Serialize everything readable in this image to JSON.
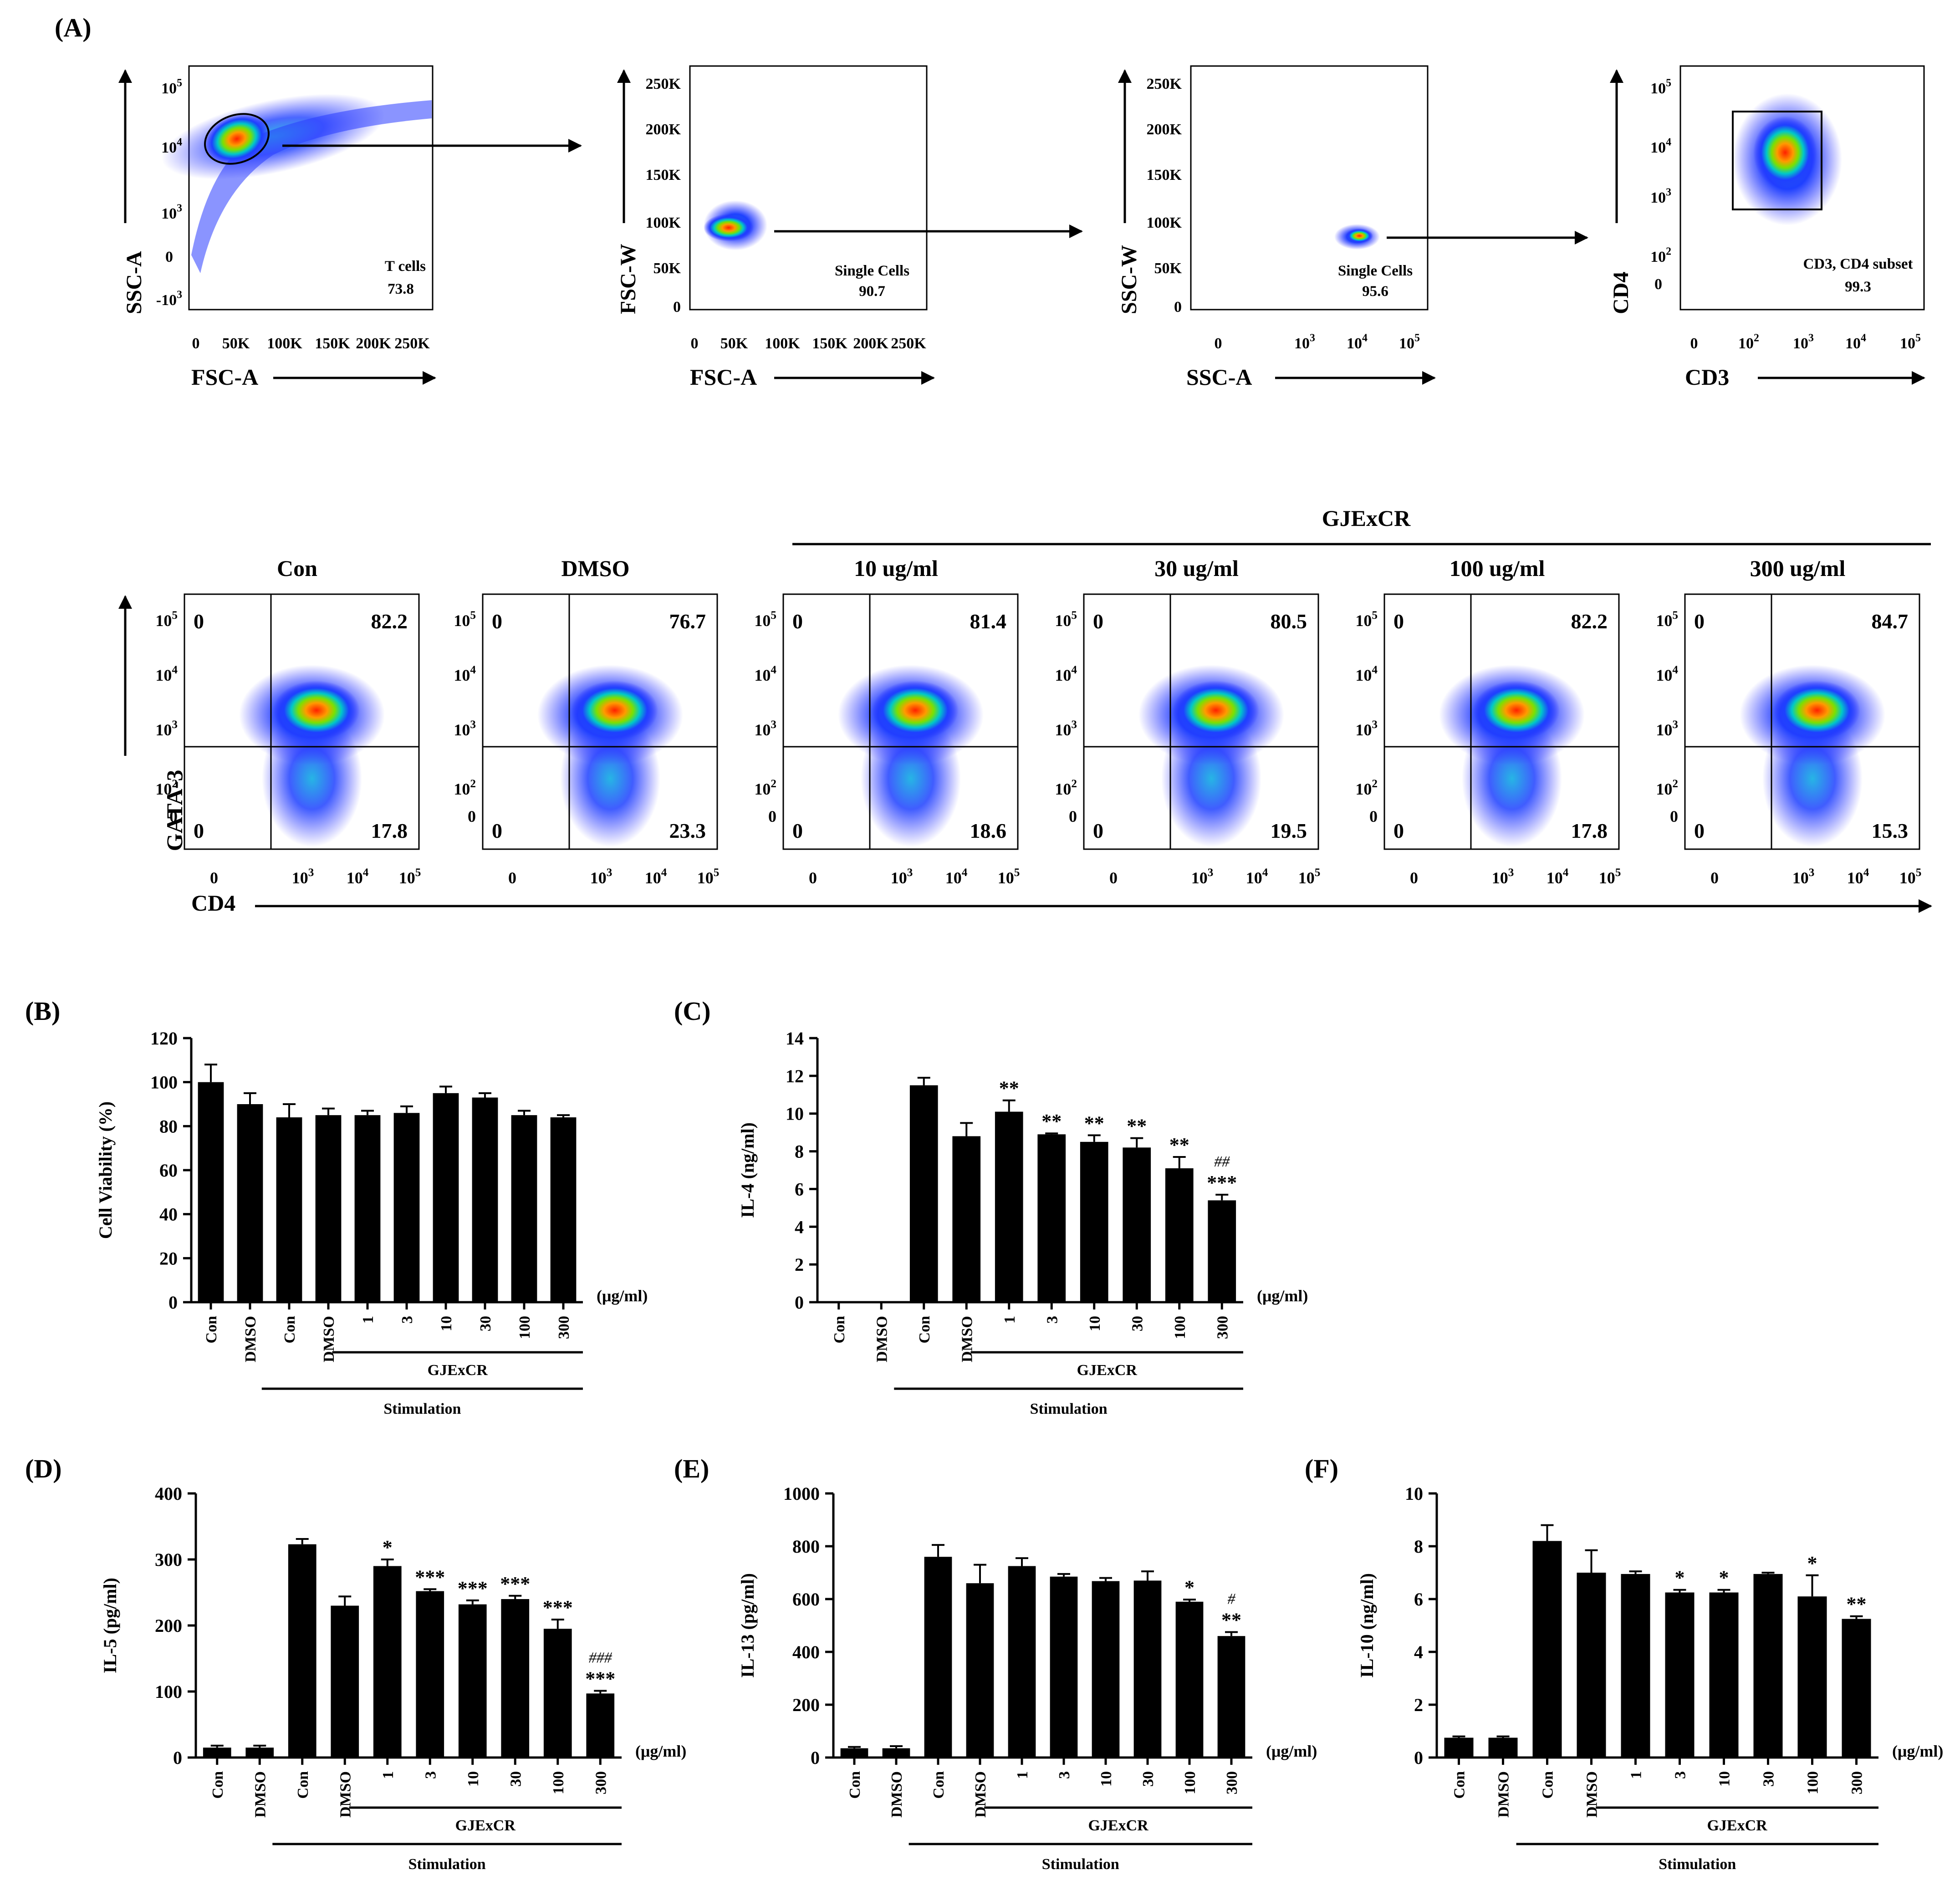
{
  "panel_labels": {
    "A": "(A)",
    "B": "(B)",
    "C": "(C)",
    "D": "(D)",
    "E": "(E)",
    "F": "(F)"
  },
  "gating": [
    {
      "xlabel": "FSC-A",
      "ylabel": "SSC-A",
      "xticks": [
        "0",
        "50K",
        "100K",
        "150K",
        "200K",
        "250K"
      ],
      "yticks": [
        "10^5",
        "10^4",
        "10^3",
        "0",
        "-10^3"
      ],
      "gate_name": "T cells",
      "gate_value": "73.8"
    },
    {
      "xlabel": "FSC-A",
      "ylabel": "FSC-W",
      "xticks": [
        "0",
        "50K",
        "100K",
        "150K",
        "200K",
        "250K"
      ],
      "yticks": [
        "250K",
        "200K",
        "150K",
        "100K",
        "50K",
        "0"
      ],
      "gate_name": "Single Cells",
      "gate_value": "90.7"
    },
    {
      "xlabel": "SSC-A",
      "ylabel": "SSC-W",
      "xticks": [
        "0",
        "10^3",
        "10^4",
        "10^5"
      ],
      "yticks": [
        "250K",
        "200K",
        "150K",
        "100K",
        "50K",
        "0"
      ],
      "gate_name": "Single Cells",
      "gate_value": "95.6"
    },
    {
      "xlabel": "CD3",
      "ylabel": "CD4",
      "xticks": [
        "0",
        "10^2",
        "10^3",
        "10^4",
        "10^5"
      ],
      "yticks": [
        "10^5",
        "10^4",
        "10^3",
        "10^2",
        "0"
      ],
      "gate_name": "CD3, CD4 subset",
      "gate_value": "99.3"
    }
  ],
  "quadrants": {
    "group_label": "GJExCR",
    "ylabel": "GATA-3",
    "xlabel": "CD4",
    "xticks": [
      "0",
      "10^3",
      "10^4",
      "10^5"
    ],
    "yticks": [
      "10^5",
      "10^4",
      "10^3",
      "10^2",
      "0"
    ],
    "plots": [
      {
        "title": "Con",
        "ul": "0",
        "ur": "82.2",
        "ll": "0",
        "lr": "17.8"
      },
      {
        "title": "DMSO",
        "ul": "0",
        "ur": "76.7",
        "ll": "0",
        "lr": "23.3"
      },
      {
        "title": "10 ug/ml",
        "ul": "0",
        "ur": "81.4",
        "ll": "0",
        "lr": "18.6"
      },
      {
        "title": "30 ug/ml",
        "ul": "0",
        "ur": "80.5",
        "ll": "0",
        "lr": "19.5"
      },
      {
        "title": "100 ug/ml",
        "ul": "0",
        "ur": "82.2",
        "ll": "0",
        "lr": "17.8"
      },
      {
        "title": "300 ug/ml",
        "ul": "0",
        "ur": "84.7",
        "ll": "0",
        "lr": "15.3"
      }
    ]
  },
  "chart_data": [
    {
      "panel": "B",
      "type": "bar",
      "ylabel": "Cell Viability (%)",
      "ylim": [
        0,
        120
      ],
      "yticks": [
        0,
        20,
        40,
        60,
        80,
        100,
        120
      ],
      "categories": [
        "Con",
        "DMSO",
        "Con",
        "DMSO",
        "1",
        "3",
        "10",
        "30",
        "100",
        "300"
      ],
      "values": [
        100,
        90,
        84,
        85,
        85,
        86,
        95,
        93,
        85,
        84
      ],
      "errors": [
        8,
        5,
        6,
        3,
        2,
        3,
        3,
        2,
        2,
        1
      ],
      "annotations": [
        "",
        "",
        "",
        "",
        "",
        "",
        "",
        "",
        "",
        ""
      ],
      "unit": "(μg/ml)",
      "group_label": "GJExCR",
      "stim_label": "Stimulation"
    },
    {
      "panel": "C",
      "type": "bar",
      "ylabel": "IL-4 (ng/ml)",
      "ylim": [
        0,
        14
      ],
      "yticks": [
        0,
        2,
        4,
        6,
        8,
        10,
        12,
        14
      ],
      "categories": [
        "Con",
        "DMSO",
        "Con",
        "DMSO",
        "1",
        "3",
        "10",
        "30",
        "100",
        "300"
      ],
      "values": [
        0,
        0,
        11.5,
        8.8,
        10.1,
        8.9,
        8.5,
        8.2,
        7.1,
        5.4
      ],
      "errors": [
        0,
        0,
        0.4,
        0.7,
        0.6,
        0.05,
        0.35,
        0.5,
        0.6,
        0.3
      ],
      "annotations": [
        "",
        "",
        "",
        "",
        "**",
        "**",
        "**",
        "**",
        "**",
        "***"
      ],
      "hash_annotations": [
        "",
        "",
        "",
        "",
        "",
        "",
        "",
        "",
        "",
        "##"
      ],
      "unit": "(μg/ml)",
      "group_label": "GJExCR",
      "stim_label": "Stimulation"
    },
    {
      "panel": "D",
      "type": "bar",
      "ylabel": "IL-5 (pg/ml)",
      "ylim": [
        0,
        400
      ],
      "yticks": [
        0,
        100,
        200,
        300,
        400
      ],
      "categories": [
        "Con",
        "DMSO",
        "Con",
        "DMSO",
        "1",
        "3",
        "10",
        "30",
        "100",
        "300"
      ],
      "values": [
        15,
        15,
        323,
        230,
        290,
        252,
        232,
        240,
        195,
        97
      ],
      "errors": [
        3,
        3,
        8,
        14,
        10,
        3,
        6,
        5,
        14,
        4
      ],
      "annotations": [
        "",
        "",
        "",
        "",
        "*",
        "***",
        "***",
        "***",
        "***",
        "***"
      ],
      "hash_annotations": [
        "",
        "",
        "",
        "",
        "",
        "",
        "",
        "",
        "",
        "###"
      ],
      "unit": "(μg/ml)",
      "group_label": "GJExCR",
      "stim_label": "Stimulation"
    },
    {
      "panel": "E",
      "type": "bar",
      "ylabel": "IL-13 (pg/ml)",
      "ylim": [
        0,
        1000
      ],
      "yticks": [
        0,
        200,
        400,
        600,
        800,
        1000
      ],
      "categories": [
        "Con",
        "DMSO",
        "Con",
        "DMSO",
        "1",
        "3",
        "10",
        "30",
        "100",
        "300"
      ],
      "values": [
        35,
        35,
        760,
        660,
        725,
        685,
        668,
        670,
        590,
        460
      ],
      "errors": [
        5,
        8,
        45,
        70,
        30,
        10,
        12,
        35,
        8,
        15
      ],
      "annotations": [
        "",
        "",
        "",
        "",
        "",
        "",
        "",
        "",
        "*",
        "**"
      ],
      "hash_annotations": [
        "",
        "",
        "",
        "",
        "",
        "",
        "",
        "",
        "",
        "#"
      ],
      "unit": "(μg/ml)",
      "group_label": "GJExCR",
      "stim_label": "Stimulation"
    },
    {
      "panel": "F",
      "type": "bar",
      "ylabel": "IL-10 (ng/ml)",
      "ylim": [
        0,
        10
      ],
      "yticks": [
        0,
        2,
        4,
        6,
        8,
        10
      ],
      "categories": [
        "Con",
        "DMSO",
        "Con",
        "DMSO",
        "1",
        "3",
        "10",
        "30",
        "100",
        "300"
      ],
      "values": [
        0.75,
        0.75,
        8.2,
        7.0,
        6.95,
        6.25,
        6.25,
        6.95,
        6.1,
        5.25
      ],
      "errors": [
        0.05,
        0.05,
        0.6,
        0.85,
        0.1,
        0.1,
        0.1,
        0.05,
        0.8,
        0.1
      ],
      "annotations": [
        "",
        "",
        "",
        "",
        "",
        "*",
        "*",
        "",
        "*",
        "**"
      ],
      "hash_annotations": [
        "",
        "",
        "",
        "",
        "",
        "",
        "",
        "",
        "",
        ""
      ],
      "unit": "(μg/ml)",
      "group_label": "GJExCR",
      "stim_label": "Stimulation"
    }
  ]
}
